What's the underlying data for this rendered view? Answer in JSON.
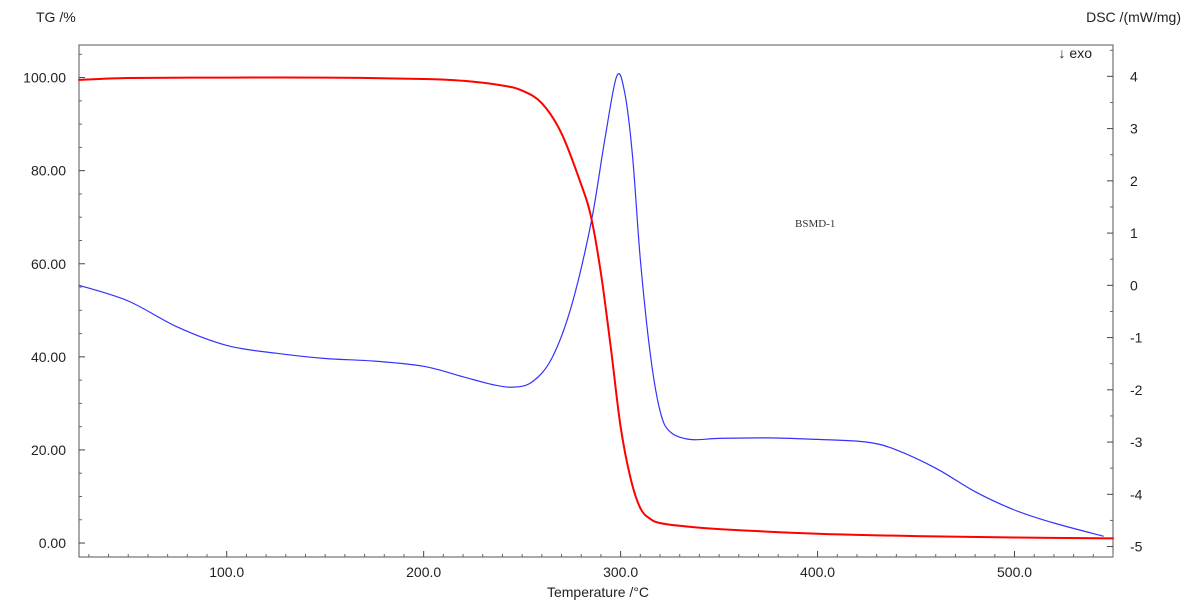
{
  "chart_data": {
    "type": "line",
    "left_axis_label": "TG /%",
    "right_axis_label": "DSC /(mW/mg)",
    "exo_label": "↓ exo",
    "xlabel": "Temperature /°C",
    "annotation": "BSMD-1",
    "xlim": [
      25,
      550
    ],
    "ylim_left": [
      -3,
      107
    ],
    "ylim_right": [
      -5.2,
      4.6
    ],
    "x_ticks": [
      100,
      200,
      300,
      400,
      500
    ],
    "x_tick_labels": [
      "100.0",
      "200.0",
      "300.0",
      "400.0",
      "500.0"
    ],
    "y_left_ticks": [
      0,
      20,
      40,
      60,
      80,
      100
    ],
    "y_left_tick_labels": [
      "0.00",
      "20.00",
      "40.00",
      "60.00",
      "80.00",
      "100.00"
    ],
    "y_right_ticks": [
      -5,
      -4,
      -3,
      -2,
      -1,
      0,
      1,
      2,
      3,
      4
    ],
    "y_right_tick_labels": [
      "-5",
      "-4",
      "-3",
      "-2",
      "-1",
      "0",
      "1",
      "2",
      "3",
      "4"
    ],
    "series": [
      {
        "axis": "left",
        "color": "#ff0000",
        "x": [
          25,
          50,
          100,
          150,
          200,
          220,
          240,
          250,
          260,
          270,
          280,
          285,
          290,
          295,
          300,
          305,
          310,
          315,
          320,
          330,
          350,
          400,
          450,
          500,
          550
        ],
        "y": [
          99.5,
          99.9,
          100.0,
          100.0,
          99.7,
          99.3,
          98.3,
          97.2,
          94.5,
          88.0,
          77.0,
          70.0,
          58.0,
          42.0,
          25.0,
          14.0,
          7.5,
          5.2,
          4.3,
          3.7,
          3.0,
          2.0,
          1.5,
          1.2,
          1.0
        ]
      },
      {
        "axis": "right",
        "color": "#3333ff",
        "x": [
          25,
          50,
          75,
          100,
          125,
          150,
          175,
          200,
          220,
          235,
          245,
          255,
          265,
          275,
          285,
          292,
          298,
          302,
          306,
          310,
          315,
          320,
          325,
          335,
          350,
          375,
          400,
          425,
          440,
          460,
          480,
          500,
          520,
          545
        ],
        "y": [
          0.0,
          -0.3,
          -0.8,
          -1.15,
          -1.3,
          -1.4,
          -1.45,
          -1.55,
          -1.75,
          -1.9,
          -1.95,
          -1.85,
          -1.4,
          -0.4,
          1.2,
          2.8,
          4.0,
          3.7,
          2.5,
          0.5,
          -1.3,
          -2.4,
          -2.8,
          -2.95,
          -2.93,
          -2.92,
          -2.95,
          -3.0,
          -3.15,
          -3.5,
          -3.95,
          -4.3,
          -4.55,
          -4.8
        ]
      }
    ]
  }
}
